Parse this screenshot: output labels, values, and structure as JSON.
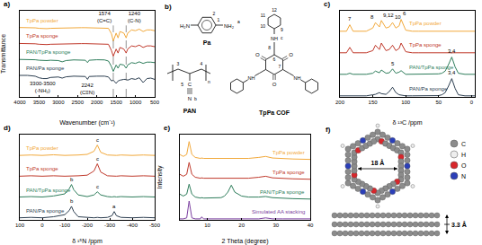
{
  "chart_data": [
    {
      "type": "line",
      "title": "a)",
      "x_label": "Wavenumber (cm⁻¹)",
      "y_label": "Transmittance",
      "x": [
        4000,
        3800,
        3600,
        3500,
        3400,
        3300,
        3200,
        3000,
        2900,
        2800,
        2600,
        2400,
        2300,
        2242,
        2200,
        2000,
        1800,
        1700,
        1620,
        1574,
        1500,
        1450,
        1400,
        1300,
        1240,
        1200,
        1100,
        1000,
        900,
        800,
        700,
        600,
        500
      ],
      "series": [
        {
          "name": "TpPa powder",
          "color": "#f2a93b",
          "values": [
            3.95,
            3.95,
            3.93,
            3.9,
            3.87,
            3.88,
            3.9,
            3.92,
            3.92,
            3.93,
            3.94,
            3.94,
            3.94,
            3.94,
            3.94,
            3.94,
            3.93,
            3.9,
            3.55,
            3.1,
            3.6,
            3.3,
            3.7,
            3.6,
            3.3,
            3.6,
            3.8,
            3.75,
            3.85,
            3.7,
            3.8,
            3.8,
            3.75
          ]
        },
        {
          "name": "TpPa sponge",
          "color": "#c0392b",
          "values": [
            2.95,
            2.95,
            2.93,
            2.9,
            2.88,
            2.88,
            2.9,
            2.92,
            2.92,
            2.93,
            2.94,
            2.94,
            2.94,
            2.94,
            2.94,
            2.94,
            2.93,
            2.9,
            2.5,
            2.15,
            2.6,
            2.35,
            2.7,
            2.6,
            2.35,
            2.6,
            2.8,
            2.75,
            2.85,
            2.7,
            2.8,
            2.8,
            2.75
          ]
        },
        {
          "name": "PAN/TpPa sponge",
          "color": "#2e7d5b",
          "values": [
            1.95,
            1.95,
            1.93,
            1.9,
            1.88,
            1.88,
            1.9,
            1.88,
            1.8,
            1.88,
            1.92,
            1.93,
            1.9,
            1.75,
            1.9,
            1.93,
            1.92,
            1.85,
            1.5,
            1.2,
            1.6,
            1.4,
            1.65,
            1.6,
            1.4,
            1.6,
            1.75,
            1.7,
            1.8,
            1.7,
            1.78,
            1.78,
            1.75
          ]
        },
        {
          "name": "PAN/Pa sponge",
          "color": "#2c3e50",
          "values": [
            0.95,
            0.95,
            0.9,
            0.8,
            0.75,
            0.75,
            0.82,
            0.85,
            0.78,
            0.86,
            0.9,
            0.91,
            0.88,
            0.7,
            0.88,
            0.9,
            0.9,
            0.85,
            0.6,
            0.65,
            0.45,
            0.6,
            0.65,
            0.7,
            0.7,
            0.65,
            0.75,
            0.7,
            0.8,
            0.5,
            0.75,
            0.78,
            0.7
          ]
        }
      ],
      "xlim": [
        4000,
        500
      ],
      "xticks": [
        4000,
        3500,
        3000,
        2500,
        2000,
        1500,
        1000,
        500
      ],
      "ylim": [
        -0.4,
        5.0
      ],
      "tick_labels": "x",
      "grid": false,
      "guides": [
        1574,
        1240
      ],
      "annotations": [
        {
          "x": 1574,
          "y": 4.1,
          "text": [
            "1574",
            "(C=C)"
          ]
        },
        {
          "x": 1240,
          "y": 4.1,
          "text": [
            "1240",
            "(C-N)"
          ]
        },
        {
          "x": 3400,
          "y": 0.7,
          "text": [
            "3300-3500",
            "(-NH₂)"
          ]
        },
        {
          "x": 2242,
          "y": 0.62,
          "text": [
            "2242",
            "(C≡N)"
          ]
        }
      ]
    },
    {
      "type": "line",
      "title": "c)",
      "x_label": "δ ¹³C /ppm",
      "x": [
        200,
        190,
        185,
        180,
        170,
        160,
        150,
        146,
        140,
        137,
        130,
        125,
        120,
        115,
        110,
        107,
        100,
        90,
        80,
        70,
        60,
        50,
        45,
        40,
        35,
        30,
        25,
        20,
        10,
        0,
        -5
      ],
      "series": [
        {
          "name": "TpPa powder",
          "color": "#f2a93b",
          "values": [
            3.05,
            3.05,
            3.35,
            3.05,
            3.05,
            3.05,
            3.2,
            3.45,
            3.25,
            3.55,
            3.2,
            3.25,
            3.45,
            3.2,
            3.3,
            3.6,
            3.1,
            3.05,
            3.05,
            3.05,
            3.05,
            3.05,
            3.05,
            3.05,
            3.05,
            3.05,
            3.05,
            3.05,
            3.05,
            3.05,
            3.05
          ]
        },
        {
          "name": "TpPa sponge",
          "color": "#c0392b",
          "values": [
            2.05,
            2.05,
            2.3,
            2.05,
            2.05,
            2.05,
            2.15,
            2.4,
            2.2,
            2.5,
            2.15,
            2.2,
            2.4,
            2.15,
            2.25,
            2.5,
            2.1,
            2.05,
            2.05,
            2.05,
            2.05,
            2.05,
            2.05,
            2.05,
            2.05,
            2.05,
            2.05,
            2.05,
            2.05,
            2.05,
            2.05
          ]
        },
        {
          "name": "PAN/TpPa sponge",
          "color": "#2e7d5b",
          "values": [
            1.05,
            1.05,
            1.1,
            1.05,
            1.05,
            1.05,
            1.1,
            1.2,
            1.12,
            1.25,
            1.1,
            1.12,
            1.3,
            1.1,
            1.15,
            1.22,
            1.05,
            1.05,
            1.05,
            1.05,
            1.05,
            1.07,
            1.1,
            1.2,
            1.5,
            1.85,
            1.4,
            1.1,
            1.05,
            1.05,
            1.05
          ]
        },
        {
          "name": "PAN/Pa sponge",
          "color": "#2c3e50",
          "values": [
            0.05,
            0.05,
            0.05,
            0.05,
            0.05,
            0.05,
            0.1,
            0.12,
            0.2,
            0.15,
            0.12,
            0.25,
            0.45,
            0.2,
            0.1,
            0.08,
            0.05,
            0.05,
            0.05,
            0.05,
            0.05,
            0.06,
            0.1,
            0.2,
            0.5,
            0.85,
            0.4,
            0.1,
            0.05,
            0.05,
            0.05
          ]
        }
      ],
      "xlim": [
        200,
        -5
      ],
      "xticks": [
        200,
        150,
        100,
        50,
        0
      ],
      "ylim": [
        0,
        4
      ],
      "tick_labels": "x",
      "grid": false,
      "annotations": [
        {
          "x": 185,
          "y": 3.4,
          "text": "7"
        },
        {
          "x": 146,
          "y": 3.5,
          "text": "8"
        },
        {
          "x": 137,
          "y": 3.6,
          "text": "9,12"
        },
        {
          "x": 120,
          "y": 3.5,
          "text": "10"
        },
        {
          "x": 107,
          "y": 3.65,
          "text": "6"
        },
        {
          "x": 120,
          "y": 1.35,
          "text": "5"
        },
        {
          "x": 30,
          "y": 1.9,
          "text": "3,4"
        },
        {
          "x": 30,
          "y": 0.9,
          "text": "3,4"
        }
      ]
    },
    {
      "type": "line",
      "title": "d)",
      "x_label": "δ ¹⁵N /ppm",
      "x": [
        100,
        50,
        0,
        -50,
        -100,
        -120,
        -130,
        -140,
        -160,
        -200,
        -230,
        -245,
        -260,
        -290,
        -310,
        -320,
        -330,
        -350,
        -400,
        -450,
        -500
      ],
      "series": [
        {
          "name": "TpPa powder",
          "color": "#f2a93b",
          "values": [
            3.1,
            3.12,
            3.1,
            3.13,
            3.1,
            3.1,
            3.12,
            3.1,
            3.12,
            3.15,
            3.3,
            3.6,
            3.25,
            3.12,
            3.1,
            3.12,
            3.1,
            3.12,
            3.1,
            3.12,
            3.1
          ]
        },
        {
          "name": "TpPa sponge",
          "color": "#c0392b",
          "values": [
            2.1,
            2.12,
            2.1,
            2.12,
            2.1,
            2.1,
            2.12,
            2.1,
            2.12,
            2.15,
            2.35,
            2.7,
            2.3,
            2.12,
            2.1,
            2.12,
            2.1,
            2.12,
            2.1,
            2.12,
            2.1
          ]
        },
        {
          "name": "PAN/TpPa sponge",
          "color": "#2e7d5b",
          "values": [
            1.1,
            1.12,
            1.1,
            1.15,
            1.25,
            1.5,
            1.7,
            1.45,
            1.2,
            1.12,
            1.2,
            1.35,
            1.2,
            1.12,
            1.1,
            1.12,
            1.1,
            1.12,
            1.1,
            1.12,
            1.1
          ]
        },
        {
          "name": "PAN/Pa sponge",
          "color": "#2c3e50",
          "values": [
            0.1,
            0.12,
            0.1,
            0.15,
            0.25,
            0.45,
            0.65,
            0.4,
            0.15,
            0.12,
            0.1,
            0.12,
            0.1,
            0.12,
            0.2,
            0.4,
            0.2,
            0.12,
            0.1,
            0.12,
            0.1
          ]
        }
      ],
      "xlim": [
        100,
        -500
      ],
      "xticks": [
        100,
        0,
        -100,
        -200,
        -300,
        -400,
        -500
      ],
      "ylim": [
        0,
        4.1
      ],
      "tick_labels": "x",
      "grid": false,
      "annotations": [
        {
          "x": -245,
          "y": 3.62,
          "text": "c"
        },
        {
          "x": -245,
          "y": 2.72,
          "text": "c"
        },
        {
          "x": -130,
          "y": 1.72,
          "text": "b"
        },
        {
          "x": -245,
          "y": 1.37,
          "text": "c"
        },
        {
          "x": -130,
          "y": 0.67,
          "text": "b"
        },
        {
          "x": -320,
          "y": 0.42,
          "text": "a"
        }
      ]
    },
    {
      "type": "line",
      "title": "e)",
      "x_label": "2 Theta (degree)",
      "y_label": "Intensity",
      "x": [
        2,
        3,
        4,
        4.7,
        5.5,
        6.5,
        8,
        8.3,
        9,
        10,
        12,
        14,
        15,
        16,
        17,
        18,
        20,
        22,
        25,
        27,
        29,
        32,
        35,
        40
      ],
      "series": [
        {
          "name": "TpPa powder",
          "color": "#f2a93b",
          "values": [
            3.3,
            3.2,
            3.3,
            3.95,
            3.3,
            3.15,
            3.1,
            3.12,
            3.1,
            3.1,
            3.08,
            3.08,
            3.08,
            3.08,
            3.08,
            3.08,
            3.08,
            3.1,
            3.15,
            3.2,
            3.12,
            3.08,
            3.07,
            3.05
          ]
        },
        {
          "name": "TpPa sponge",
          "color": "#c0392b",
          "values": [
            2.3,
            2.2,
            2.3,
            2.9,
            2.3,
            2.15,
            2.1,
            2.12,
            2.1,
            2.1,
            2.08,
            2.08,
            2.08,
            2.08,
            2.08,
            2.08,
            2.08,
            2.1,
            2.15,
            2.2,
            2.12,
            2.08,
            2.07,
            2.05
          ]
        },
        {
          "name": "PAN/TpPa sponge",
          "color": "#2e7d5b",
          "values": [
            1.3,
            1.2,
            1.3,
            1.8,
            1.3,
            1.15,
            1.1,
            1.12,
            1.1,
            1.1,
            1.1,
            1.12,
            1.2,
            1.4,
            1.75,
            1.4,
            1.2,
            1.15,
            1.15,
            1.18,
            1.12,
            1.08,
            1.07,
            1.05
          ]
        },
        {
          "name": "Simulated AA stacking",
          "color": "#7b3fa0",
          "values": [
            0.05,
            0.05,
            0.1,
            0.95,
            0.1,
            0.05,
            0.05,
            0.15,
            0.05,
            0.05,
            0.05,
            0.05,
            0.05,
            0.05,
            0.05,
            0.05,
            0.05,
            0.05,
            0.05,
            0.1,
            0.05,
            0.05,
            0.05,
            0.05
          ]
        }
      ],
      "xlim": [
        2,
        40
      ],
      "xticks": [
        10,
        20,
        30,
        40
      ],
      "ylim": [
        0,
        4.3
      ],
      "tick_labels": "x",
      "grid": false,
      "annotations": []
    }
  ],
  "panels": {
    "b": {
      "label": "b)",
      "pa": {
        "name": "Pa",
        "left": "H₂N",
        "right": "NH₂",
        "numbers": [
          "1",
          "2"
        ],
        "proton": "a"
      },
      "pan": {
        "name": "PAN",
        "carbon": "C",
        "nitrogen": "N",
        "numbers": [
          "3",
          "4",
          "5"
        ],
        "repeat": "n",
        "proton": "b"
      },
      "cof": {
        "name": "TpPa COF",
        "oxygen": "O",
        "amine": "NH",
        "numbers": [
          "6",
          "7",
          "8",
          "9",
          "10",
          "11",
          "12"
        ],
        "proton": "c"
      }
    },
    "f": {
      "label": "f)",
      "pore": "18 Å",
      "spacing": "3.3 Å",
      "legend": [
        {
          "name": "C",
          "color": "#8c8c8c"
        },
        {
          "name": "H",
          "color": "#eeeeee"
        },
        {
          "name": "O",
          "color": "#d8262b"
        },
        {
          "name": "N",
          "color": "#2b3fb8"
        }
      ]
    }
  }
}
